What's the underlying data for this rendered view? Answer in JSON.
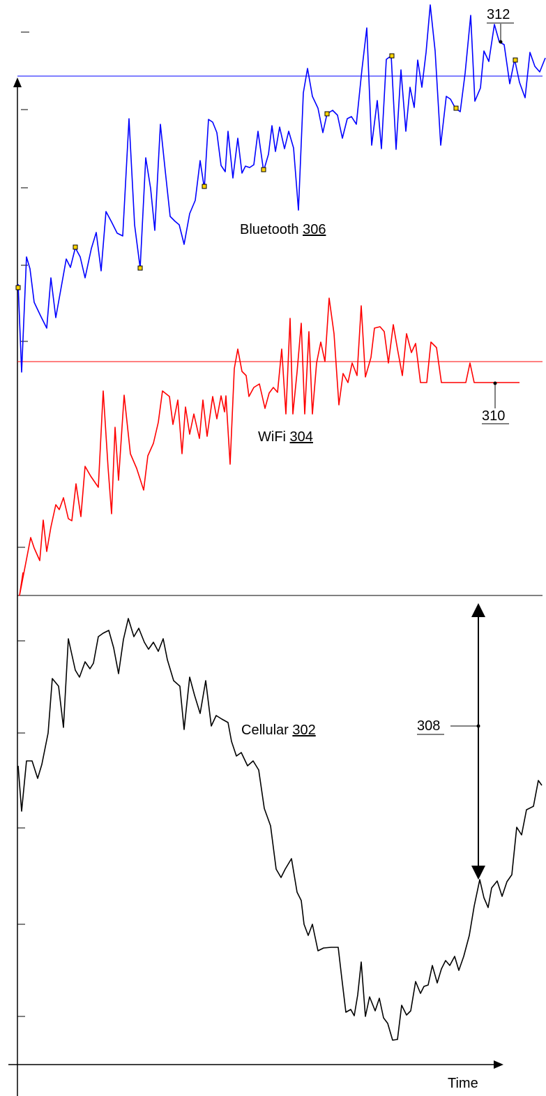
{
  "chart_data": {
    "type": "line",
    "title": "",
    "xlabel": "Time",
    "ylabel": "",
    "grid": false,
    "series": [
      {
        "name": "Bluetooth",
        "ref": "306",
        "color": "#0000ff",
        "threshold": 109,
        "points": [
          [
            26,
            407
          ],
          [
            31,
            533
          ],
          [
            38,
            368
          ],
          [
            43,
            385
          ],
          [
            49,
            433
          ],
          [
            58,
            452
          ],
          [
            67,
            470
          ],
          [
            73,
            398
          ],
          [
            80,
            455
          ],
          [
            95,
            371
          ],
          [
            101,
            383
          ],
          [
            108,
            355
          ],
          [
            115,
            368
          ],
          [
            122,
            398
          ],
          [
            131,
            356
          ],
          [
            138,
            333
          ],
          [
            145,
            388
          ],
          [
            152,
            303
          ],
          [
            160,
            318
          ],
          [
            168,
            334
          ],
          [
            176,
            338
          ],
          [
            185,
            170
          ],
          [
            193,
            322
          ],
          [
            201,
            384
          ],
          [
            209,
            226
          ],
          [
            216,
            270
          ],
          [
            222,
            330
          ],
          [
            230,
            178
          ],
          [
            237,
            245
          ],
          [
            244,
            310
          ],
          [
            251,
            317
          ],
          [
            257,
            322
          ],
          [
            264,
            350
          ],
          [
            272,
            306
          ],
          [
            280,
            287
          ],
          [
            287,
            230
          ],
          [
            293,
            270
          ],
          [
            299,
            171
          ],
          [
            305,
            175
          ],
          [
            311,
            190
          ],
          [
            317,
            237
          ],
          [
            323,
            246
          ],
          [
            327,
            188
          ],
          [
            334,
            255
          ],
          [
            341,
            198
          ],
          [
            347,
            248
          ],
          [
            352,
            238
          ],
          [
            358,
            240
          ],
          [
            364,
            236
          ],
          [
            370,
            188
          ],
          [
            378,
            245
          ],
          [
            385,
            221
          ],
          [
            390,
            180
          ],
          [
            395,
            217
          ],
          [
            401,
            182
          ],
          [
            408,
            213
          ],
          [
            414,
            188
          ],
          [
            421,
            212
          ],
          [
            428,
            301
          ],
          [
            435,
            133
          ],
          [
            441,
            98
          ],
          [
            448,
            138
          ],
          [
            456,
            155
          ],
          [
            463,
            190
          ],
          [
            469,
            163
          ],
          [
            477,
            158
          ],
          [
            484,
            165
          ],
          [
            491,
            198
          ],
          [
            498,
            170
          ],
          [
            504,
            167
          ],
          [
            511,
            178
          ],
          [
            519,
            100
          ],
          [
            526,
            40
          ],
          [
            533,
            208
          ],
          [
            541,
            144
          ],
          [
            547,
            213
          ],
          [
            554,
            85
          ],
          [
            561,
            80
          ],
          [
            568,
            214
          ],
          [
            575,
            100
          ],
          [
            582,
            188
          ],
          [
            588,
            125
          ],
          [
            594,
            154
          ],
          [
            599,
            86
          ],
          [
            605,
            125
          ],
          [
            611,
            75
          ],
          [
            617,
            7
          ],
          [
            624,
            73
          ],
          [
            632,
            208
          ],
          [
            640,
            138
          ],
          [
            646,
            142
          ],
          [
            653,
            155
          ],
          [
            660,
            160
          ],
          [
            667,
            105
          ],
          [
            675,
            22
          ],
          [
            681,
            145
          ],
          [
            689,
            126
          ],
          [
            694,
            73
          ],
          [
            701,
            88
          ],
          [
            709,
            35
          ],
          [
            716,
            60
          ],
          [
            723,
            64
          ],
          [
            731,
            120
          ],
          [
            738,
            85
          ],
          [
            745,
            118
          ],
          [
            753,
            140
          ],
          [
            760,
            75
          ],
          [
            767,
            95
          ],
          [
            774,
            103
          ],
          [
            782,
            83
          ]
        ],
        "markers": [
          [
            26,
            412
          ],
          [
            108,
            354
          ],
          [
            201,
            384
          ],
          [
            293,
            267
          ],
          [
            378,
            243
          ],
          [
            469,
            163
          ],
          [
            562,
            80
          ],
          [
            654,
            155
          ],
          [
            739,
            86
          ]
        ]
      },
      {
        "name": "WiFi",
        "ref": "304",
        "color": "#ff0000",
        "threshold": 518,
        "points": [
          [
            33,
            820
          ],
          [
            28,
            853
          ],
          [
            44,
            770
          ],
          [
            49,
            785
          ],
          [
            57,
            803
          ],
          [
            62,
            745
          ],
          [
            67,
            790
          ],
          [
            73,
            755
          ],
          [
            80,
            723
          ],
          [
            85,
            730
          ],
          [
            91,
            713
          ],
          [
            98,
            743
          ],
          [
            103,
            746
          ],
          [
            109,
            693
          ],
          [
            116,
            740
          ],
          [
            122,
            668
          ],
          [
            130,
            682
          ],
          [
            141,
            698
          ],
          [
            148,
            560
          ],
          [
            155,
            670
          ],
          [
            160,
            736
          ],
          [
            165,
            612
          ],
          [
            170,
            688
          ],
          [
            178,
            566
          ],
          [
            187,
            650
          ],
          [
            196,
            671
          ],
          [
            206,
            702
          ],
          [
            212,
            653
          ],
          [
            220,
            635
          ],
          [
            227,
            605
          ],
          [
            233,
            560
          ],
          [
            243,
            568
          ],
          [
            248,
            608
          ],
          [
            255,
            573
          ],
          [
            261,
            650
          ],
          [
            266,
            583
          ],
          [
            272,
            622
          ],
          [
            278,
            593
          ],
          [
            286,
            628
          ],
          [
            291,
            573
          ],
          [
            297,
            625
          ],
          [
            305,
            568
          ],
          [
            311,
            600
          ],
          [
            317,
            567
          ],
          [
            322,
            590
          ],
          [
            324,
            567
          ],
          [
            330,
            665
          ],
          [
            336,
            528
          ],
          [
            341,
            500
          ],
          [
            347,
            532
          ],
          [
            353,
            538
          ],
          [
            357,
            568
          ],
          [
            364,
            555
          ],
          [
            372,
            550
          ],
          [
            380,
            585
          ],
          [
            386,
            563
          ],
          [
            392,
            555
          ],
          [
            398,
            562
          ],
          [
            404,
            500
          ],
          [
            410,
            593
          ],
          [
            416,
            456
          ],
          [
            420,
            593
          ],
          [
            426,
            533
          ],
          [
            432,
            463
          ],
          [
            437,
            593
          ],
          [
            443,
            475
          ],
          [
            448,
            593
          ],
          [
            454,
            520
          ],
          [
            460,
            490
          ],
          [
            466,
            518
          ],
          [
            472,
            427
          ],
          [
            479,
            478
          ],
          [
            486,
            580
          ],
          [
            492,
            535
          ],
          [
            499,
            548
          ],
          [
            505,
            520
          ],
          [
            512,
            538
          ],
          [
            518,
            438
          ],
          [
            524,
            540
          ],
          [
            532,
            512
          ],
          [
            537,
            470
          ],
          [
            545,
            468
          ],
          [
            551,
            475
          ],
          [
            557,
            520
          ],
          [
            564,
            465
          ],
          [
            570,
            500
          ],
          [
            577,
            538
          ],
          [
            583,
            478
          ],
          [
            590,
            505
          ],
          [
            596,
            492
          ],
          [
            603,
            548
          ],
          [
            612,
            548
          ],
          [
            618,
            490
          ],
          [
            626,
            498
          ],
          [
            633,
            548
          ],
          [
            668,
            548
          ],
          [
            674,
            520
          ],
          [
            680,
            548
          ],
          [
            745,
            548
          ]
        ]
      },
      {
        "name": "Cellular",
        "ref": "302",
        "color": "#000000",
        "points": [
          [
            26,
            1097
          ],
          [
            31,
            1162
          ],
          [
            38,
            1090
          ],
          [
            46,
            1090
          ],
          [
            54,
            1115
          ],
          [
            60,
            1095
          ],
          [
            69,
            1050
          ],
          [
            75,
            972
          ],
          [
            84,
            983
          ],
          [
            91,
            1042
          ],
          [
            98,
            915
          ],
          [
            108,
            960
          ],
          [
            114,
            970
          ],
          [
            122,
            948
          ],
          [
            129,
            958
          ],
          [
            134,
            950
          ],
          [
            141,
            912
          ],
          [
            148,
            907
          ],
          [
            156,
            903
          ],
          [
            163,
            928
          ],
          [
            170,
            965
          ],
          [
            177,
            916
          ],
          [
            184,
            886
          ],
          [
            192,
            912
          ],
          [
            199,
            900
          ],
          [
            207,
            920
          ],
          [
            213,
            930
          ],
          [
            220,
            920
          ],
          [
            227,
            933
          ],
          [
            234,
            915
          ],
          [
            240,
            945
          ],
          [
            249,
            975
          ],
          [
            258,
            983
          ],
          [
            264,
            1045
          ],
          [
            272,
            970
          ],
          [
            279,
            996
          ],
          [
            287,
            1022
          ],
          [
            295,
            975
          ],
          [
            303,
            1040
          ],
          [
            310,
            1025
          ],
          [
            318,
            1030
          ],
          [
            327,
            1035
          ],
          [
            332,
            1062
          ],
          [
            339,
            1083
          ],
          [
            346,
            1078
          ],
          [
            355,
            1097
          ],
          [
            363,
            1090
          ],
          [
            371,
            1103
          ],
          [
            379,
            1158
          ],
          [
            388,
            1183
          ],
          [
            396,
            1245
          ],
          [
            403,
            1257
          ],
          [
            409,
            1245
          ],
          [
            418,
            1230
          ],
          [
            426,
            1278
          ],
          [
            432,
            1290
          ],
          [
            436,
            1324
          ],
          [
            442,
            1340
          ],
          [
            448,
            1324
          ],
          [
            456,
            1362
          ],
          [
            464,
            1358
          ],
          [
            475,
            1357
          ],
          [
            485,
            1357
          ],
          [
            490,
            1400
          ],
          [
            496,
            1450
          ],
          [
            503,
            1446
          ],
          [
            508,
            1455
          ],
          [
            513,
            1425
          ],
          [
            518,
            1378
          ],
          [
            524,
            1456
          ],
          [
            530,
            1428
          ],
          [
            538,
            1448
          ],
          [
            544,
            1430
          ],
          [
            550,
            1458
          ],
          [
            556,
            1466
          ],
          [
            563,
            1490
          ],
          [
            570,
            1489
          ],
          [
            576,
            1440
          ],
          [
            583,
            1454
          ],
          [
            589,
            1448
          ],
          [
            596,
            1406
          ],
          [
            603,
            1423
          ],
          [
            608,
            1413
          ],
          [
            614,
            1411
          ],
          [
            620,
            1383
          ],
          [
            627,
            1408
          ],
          [
            633,
            1388
          ],
          [
            639,
            1376
          ],
          [
            645,
            1383
          ],
          [
            652,
            1370
          ],
          [
            658,
            1390
          ],
          [
            665,
            1370
          ],
          [
            673,
            1340
          ],
          [
            680,
            1298
          ],
          [
            688,
            1260
          ],
          [
            694,
            1286
          ],
          [
            700,
            1300
          ],
          [
            705,
            1272
          ],
          [
            713,
            1262
          ],
          [
            720,
            1284
          ],
          [
            727,
            1263
          ],
          [
            734,
            1253
          ],
          [
            741,
            1185
          ],
          [
            748,
            1196
          ],
          [
            755,
            1160
          ],
          [
            765,
            1155
          ],
          [
            772,
            1118
          ],
          [
            777,
            1125
          ]
        ]
      }
    ],
    "annotations": [
      {
        "label": "312",
        "kind": "leader to Bluetooth peak"
      },
      {
        "label": "310",
        "kind": "leader to WiFi level"
      },
      {
        "label": "308",
        "kind": "double-headed arrow (range)"
      }
    ]
  }
}
